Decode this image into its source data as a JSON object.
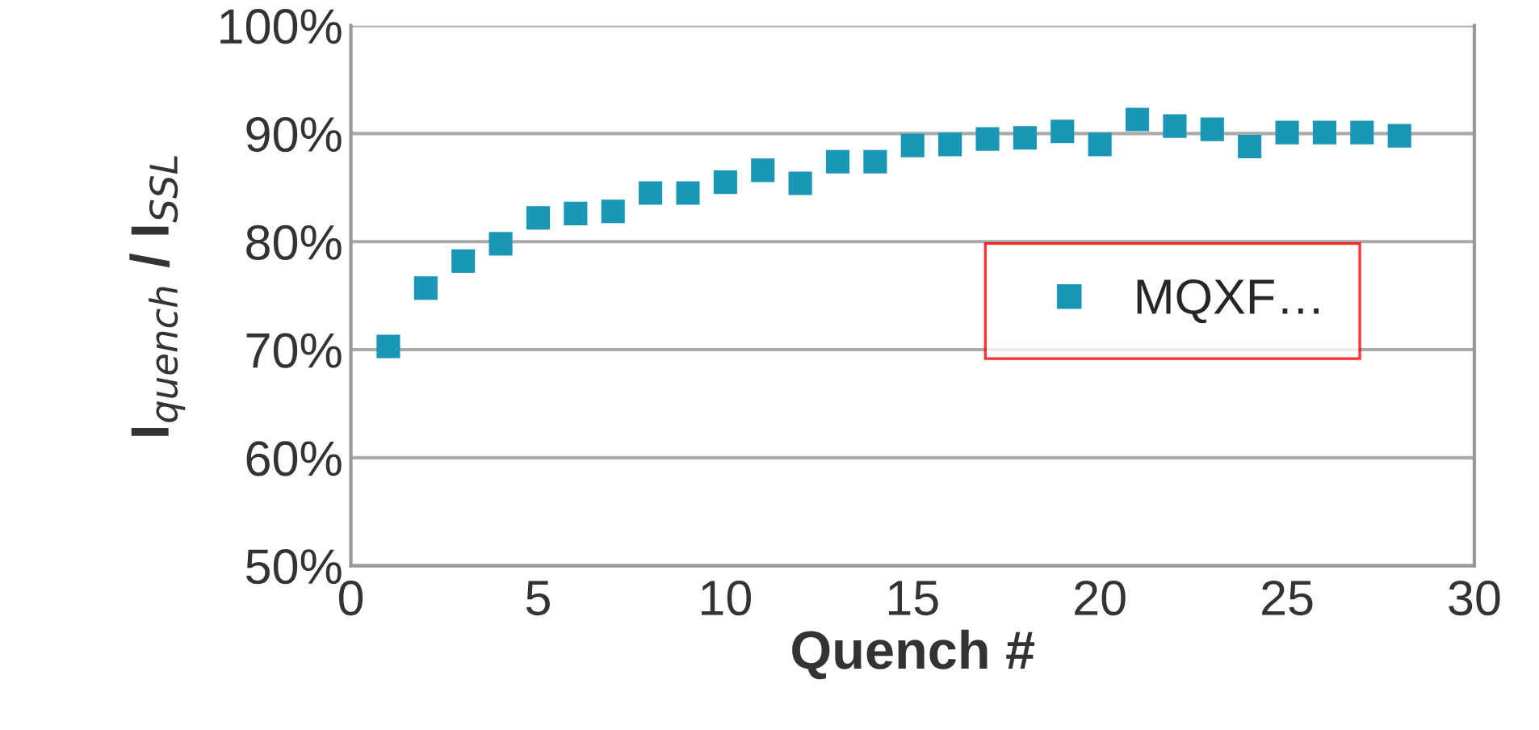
{
  "chart_data": {
    "type": "scatter",
    "xlabel": "Quench #",
    "ylabel": "I$_{quench}$ / I$_{SSL}$",
    "x": [
      1,
      2,
      3,
      4,
      5,
      6,
      7,
      8,
      9,
      10,
      11,
      12,
      13,
      14,
      15,
      16,
      17,
      18,
      19,
      20,
      21,
      22,
      23,
      24,
      25,
      26,
      27,
      28
    ],
    "series": [
      {
        "name": "MQXF…",
        "color": "#1a96b6",
        "values": [
          70.3,
          75.7,
          78.2,
          79.8,
          82.2,
          82.6,
          82.8,
          84.5,
          84.5,
          85.5,
          86.6,
          85.4,
          87.4,
          87.4,
          88.9,
          89.0,
          89.5,
          89.6,
          90.2,
          89.0,
          91.3,
          90.7,
          90.4,
          88.8,
          90.1,
          90.1,
          90.1,
          89.8
        ]
      }
    ],
    "xlim": [
      0,
      30
    ],
    "xticks": [
      0,
      5,
      10,
      15,
      20,
      25,
      30
    ],
    "ylim": [
      50,
      100
    ],
    "yticks": [
      {
        "value": 50,
        "label": "50%"
      },
      {
        "value": 60,
        "label": "60%"
      },
      {
        "value": 70,
        "label": "70%"
      },
      {
        "value": 80,
        "label": "80%"
      },
      {
        "value": 90,
        "label": "90%"
      },
      {
        "value": 100,
        "label": "100%"
      }
    ],
    "grid": "y",
    "legend": "right",
    "marker": "square"
  }
}
